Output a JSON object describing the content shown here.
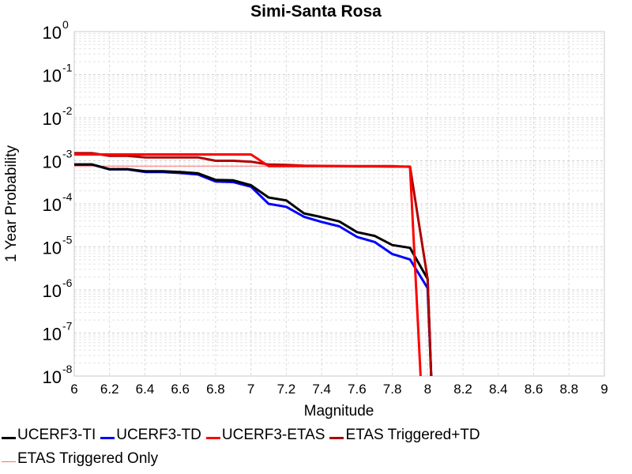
{
  "chart_data": {
    "type": "line",
    "title": "Simi-Santa Rosa",
    "xlabel": "Magnitude",
    "ylabel": "1 Year Probability",
    "xlim": [
      6,
      9
    ],
    "ylim": [
      1e-08,
      1
    ],
    "yscale": "log",
    "grid": true,
    "legend_position": "bottom",
    "x_ticks": [
      "6",
      "6.2",
      "6.4",
      "6.6",
      "6.8",
      "7",
      "7.2",
      "7.4",
      "7.6",
      "7.8",
      "8",
      "8.2",
      "8.4",
      "8.6",
      "8.8",
      "9"
    ],
    "y_ticks": [
      {
        "base": "10",
        "exp": "0",
        "value": 1
      },
      {
        "base": "10",
        "exp": "-1",
        "value": 0.1
      },
      {
        "base": "10",
        "exp": "-2",
        "value": 0.01
      },
      {
        "base": "10",
        "exp": "-3",
        "value": 0.001
      },
      {
        "base": "10",
        "exp": "-4",
        "value": 0.0001
      },
      {
        "base": "10",
        "exp": "-5",
        "value": 1e-05
      },
      {
        "base": "10",
        "exp": "-6",
        "value": 1e-06
      },
      {
        "base": "10",
        "exp": "-7",
        "value": 1e-07
      },
      {
        "base": "10",
        "exp": "-8",
        "value": 1e-08
      }
    ],
    "series": [
      {
        "name": "ETAS Triggered Only",
        "color": "#ff6b6b",
        "width": 1,
        "x": [
          6.0,
          7.9
        ],
        "y": [
          0.00075,
          0.00075
        ]
      },
      {
        "name": "UCERF3-TD",
        "color": "#0000ff",
        "width": 3,
        "x": [
          6.0,
          6.1,
          6.2,
          6.3,
          6.4,
          6.5,
          6.6,
          6.7,
          6.8,
          6.9,
          7.0,
          7.1,
          7.2,
          7.3,
          7.4,
          7.5,
          7.6,
          7.7,
          7.8,
          7.9,
          8.0,
          8.02
        ],
        "y": [
          0.00082,
          0.00082,
          0.00063,
          0.00063,
          0.00055,
          0.00055,
          0.00052,
          0.00048,
          0.00033,
          0.00032,
          0.00025,
          0.0001,
          8.5e-05,
          5e-05,
          3.8e-05,
          3e-05,
          1.7e-05,
          1.3e-05,
          6.8e-06,
          5.1e-06,
          1.1e-06,
          1e-08
        ]
      },
      {
        "name": "UCERF3-TI",
        "color": "#000000",
        "width": 3,
        "x": [
          6.0,
          6.1,
          6.2,
          6.3,
          6.4,
          6.5,
          6.6,
          6.7,
          6.8,
          6.9,
          7.0,
          7.1,
          7.2,
          7.3,
          7.4,
          7.5,
          7.6,
          7.7,
          7.8,
          7.9,
          8.0,
          8.02
        ],
        "y": [
          0.00082,
          0.00082,
          0.00064,
          0.00064,
          0.00057,
          0.00057,
          0.00055,
          0.00051,
          0.00036,
          0.00035,
          0.00027,
          0.00014,
          0.00012,
          6e-05,
          4.9e-05,
          3.9e-05,
          2.2e-05,
          1.8e-05,
          1.1e-05,
          9.5e-06,
          1.8e-06,
          1e-08
        ]
      },
      {
        "name": "ETAS Triggered+TD",
        "color": "#b00000",
        "width": 3,
        "x": [
          6.0,
          6.1,
          6.2,
          6.3,
          6.4,
          6.5,
          6.6,
          6.7,
          6.8,
          6.9,
          7.0,
          7.1,
          7.2,
          7.3,
          7.4,
          7.5,
          7.6,
          7.7,
          7.8,
          7.9,
          8.0,
          8.02
        ],
        "y": [
          0.0015,
          0.0015,
          0.0013,
          0.0013,
          0.0012,
          0.0012,
          0.0012,
          0.0012,
          0.001,
          0.001,
          0.00095,
          0.00082,
          0.0008,
          0.00077,
          0.00076,
          0.00075,
          0.00074,
          0.00074,
          0.00073,
          0.00073,
          1.8e-06,
          1e-08
        ]
      },
      {
        "name": "UCERF3-ETAS",
        "color": "#ff0000",
        "width": 3,
        "x": [
          6.0,
          6.1,
          6.2,
          6.3,
          6.4,
          6.5,
          6.6,
          6.7,
          6.8,
          6.9,
          7.0,
          7.1,
          7.2,
          7.3,
          7.4,
          7.5,
          7.6,
          7.7,
          7.8,
          7.9,
          7.96
        ],
        "y": [
          0.0014,
          0.0014,
          0.0014,
          0.0014,
          0.0014,
          0.0014,
          0.0014,
          0.0014,
          0.0014,
          0.0014,
          0.0014,
          0.00075,
          0.00075,
          0.00075,
          0.00075,
          0.00075,
          0.00075,
          0.00075,
          0.00075,
          0.00072,
          1e-08
        ]
      }
    ],
    "legend_rows": [
      [
        "UCERF3-TI",
        "UCERF3-TD",
        "UCERF3-ETAS",
        "ETAS Triggered+TD"
      ],
      [
        "ETAS Triggered Only"
      ]
    ]
  }
}
